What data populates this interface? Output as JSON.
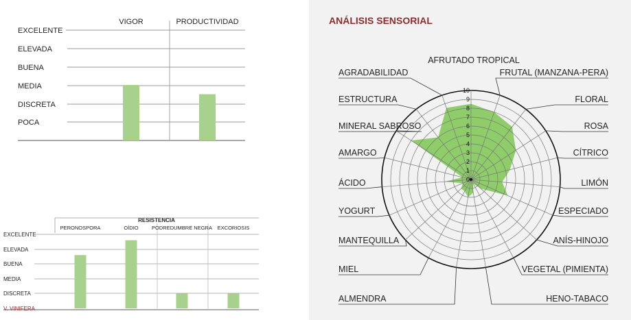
{
  "colors": {
    "bar": "#a9d18e",
    "radar_fill": "#8fcc6a",
    "accent": "#8b2e2e",
    "grid": "#888888",
    "text": "#222222"
  },
  "chart_data": [
    {
      "type": "bar",
      "title": "",
      "levels": [
        "EXCELENTE",
        "ELEVADA",
        "BUENA",
        "MEDIA",
        "DISCRETA",
        "POCA"
      ],
      "categories": [
        "VIGOR",
        "PRODUCTIVIDAD"
      ],
      "values": [
        3,
        2.5
      ],
      "ylim": [
        0,
        6
      ]
    },
    {
      "type": "bar",
      "title": "RESISTENCIA",
      "levels": [
        "EXCELENTE",
        "ELEVADA",
        "BUENA",
        "MEDIA",
        "DISCRETA",
        "V. VINIFERA"
      ],
      "categories": [
        "PERONOSPORA",
        "OÍDIO",
        "PODREDUMBRE NEGRA",
        "EXCORIOSIS"
      ],
      "values": [
        3.6,
        4.6,
        1,
        1
      ],
      "ylim": [
        0,
        5
      ]
    },
    {
      "type": "radar",
      "title": "ANÁLISIS SENSORIAL",
      "scale": [
        0,
        10
      ],
      "ticks": [
        "0",
        "1",
        "2",
        "3",
        "4",
        "5",
        "6",
        "7",
        "8",
        "9",
        "10"
      ],
      "categories": [
        "AFRUTADO TROPICAL",
        "FRUTAL (MANZANA-PERA)",
        "FLORAL",
        "ROSA",
        "CÍTRICO",
        "LIMÓN",
        "ESPECIADO",
        "ANÍS-HINOJO",
        "VEGETAL (PIMIENTA)",
        "HENO-TABACO",
        "ALMENDRA",
        "MIEL",
        "MANTEQUILLA",
        "YOGURT",
        "ÁCIDO",
        "AMARGO",
        "MINERAL SABROSO",
        "ESTRUCTURA",
        "AGRADABILIDAD"
      ],
      "values": [
        8.5,
        8,
        7.5,
        6,
        4.5,
        3.5,
        4.5,
        1.5,
        0.5,
        1.5,
        2,
        1.5,
        1.5,
        1,
        3,
        1,
        8,
        6,
        8.5
      ]
    }
  ]
}
